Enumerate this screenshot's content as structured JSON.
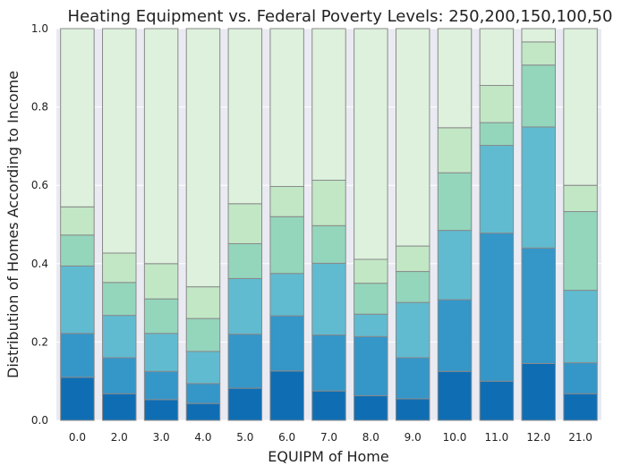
{
  "chart_data": {
    "type": "bar",
    "stacked": true,
    "title": "Heating Equipment vs. Federal Poverty Levels: 250,200,150,100,50",
    "xlabel": "EQUIPM of Home",
    "ylabel": "Distribution of Homes According to Income",
    "ylim": [
      0,
      1.0
    ],
    "yticks": [
      "0.0",
      "0.2",
      "0.4",
      "0.6",
      "0.8",
      "1.0"
    ],
    "grid": true,
    "legend": "none",
    "categories": [
      "0.0",
      "2.0",
      "3.0",
      "4.0",
      "5.0",
      "6.0",
      "7.0",
      "8.0",
      "9.0",
      "10.0",
      "11.0",
      "12.0",
      "21.0"
    ],
    "colors": [
      "#0f6eb3",
      "#3596c8",
      "#60bbd0",
      "#93d6bc",
      "#c2e7c5",
      "#ddf1dc"
    ],
    "series": [
      {
        "cumulative": [
          0.11,
          0.068,
          0.053,
          0.043,
          0.082,
          0.126,
          0.075,
          0.063,
          0.055,
          0.125,
          0.1,
          0.145,
          0.068
        ]
      },
      {
        "cumulative": [
          0.222,
          0.16,
          0.125,
          0.094,
          0.22,
          0.267,
          0.218,
          0.214,
          0.16,
          0.308,
          0.478,
          0.44,
          0.147
        ]
      },
      {
        "cumulative": [
          0.394,
          0.268,
          0.222,
          0.176,
          0.362,
          0.375,
          0.401,
          0.271,
          0.301,
          0.485,
          0.702,
          0.749,
          0.332
        ]
      },
      {
        "cumulative": [
          0.473,
          0.352,
          0.31,
          0.26,
          0.451,
          0.52,
          0.497,
          0.35,
          0.38,
          0.632,
          0.76,
          0.907,
          0.533
        ]
      },
      {
        "cumulative": [
          0.545,
          0.427,
          0.4,
          0.341,
          0.553,
          0.597,
          0.613,
          0.411,
          0.445,
          0.747,
          0.855,
          0.966,
          0.6
        ]
      },
      {
        "cumulative": [
          1.0,
          1.0,
          1.0,
          1.0,
          1.0,
          1.0,
          1.0,
          1.0,
          1.0,
          1.0,
          1.0,
          1.0,
          1.0
        ]
      }
    ]
  }
}
